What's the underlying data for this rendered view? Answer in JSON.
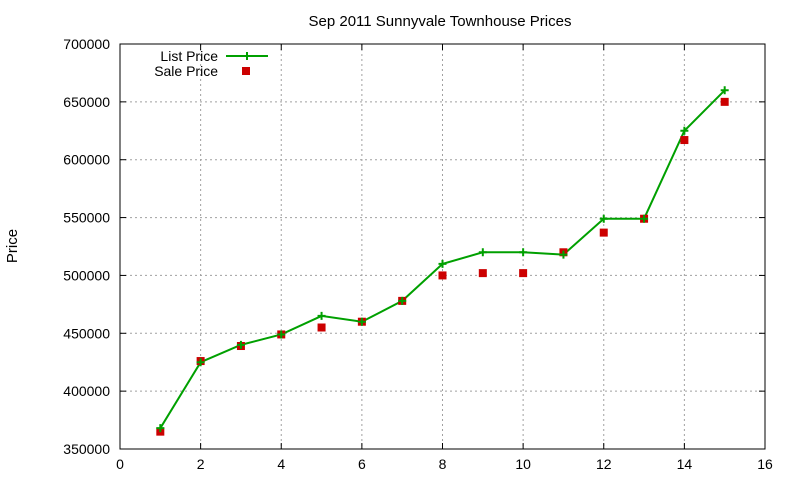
{
  "chart_data": {
    "type": "line",
    "title": "Sep 2011 Sunnyvale Townhouse Prices",
    "xlabel": "",
    "ylabel": "Price",
    "xlim": [
      0,
      16
    ],
    "ylim": [
      350000,
      700000
    ],
    "x_ticks": [
      0,
      2,
      4,
      6,
      8,
      10,
      12,
      14,
      16
    ],
    "y_ticks": [
      350000,
      400000,
      450000,
      500000,
      550000,
      600000,
      650000,
      700000
    ],
    "grid": true,
    "legend_position": "top-left",
    "series": [
      {
        "name": "List Price",
        "style": "line-with-plus-markers",
        "color": "#00a000",
        "x": [
          1,
          2,
          3,
          4,
          5,
          6,
          7,
          8,
          9,
          10,
          11,
          12,
          13,
          14,
          15
        ],
        "values": [
          368000,
          425000,
          440000,
          449000,
          465000,
          460000,
          478000,
          510000,
          520000,
          520000,
          518000,
          549000,
          549000,
          625000,
          660000
        ]
      },
      {
        "name": "Sale Price",
        "style": "square-markers",
        "color": "#cc0000",
        "x": [
          1,
          2,
          3,
          4,
          5,
          6,
          7,
          8,
          9,
          10,
          11,
          12,
          13,
          14,
          15
        ],
        "values": [
          365000,
          426000,
          439000,
          449000,
          455000,
          460000,
          478000,
          500000,
          502000,
          502000,
          520000,
          537000,
          549000,
          617000,
          650000
        ]
      }
    ]
  }
}
